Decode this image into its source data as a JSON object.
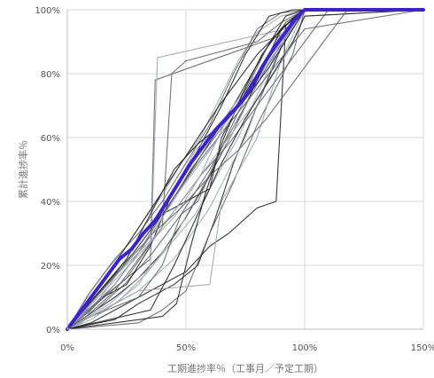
{
  "chart_data": {
    "type": "line",
    "xlabel": "工期進捗率％（工事月／予定工期）",
    "ylabel": "累計進捗率％",
    "xlim": [
      0,
      150
    ],
    "ylim": [
      0,
      100
    ],
    "x_ticks": [
      "0%",
      "50%",
      "100%",
      "150%"
    ],
    "y_ticks": [
      "0%",
      "20%",
      "40%",
      "60%",
      "80%",
      "100%"
    ],
    "x_tick_values": [
      0,
      50,
      100,
      150
    ],
    "y_tick_values": [
      0,
      20,
      40,
      60,
      80,
      100
    ],
    "grid": "both",
    "legend": "none",
    "colors": {
      "highlight": "#3a1fe0",
      "gray_dark": "#222222",
      "gray_mid": "#666666",
      "gray_light": "#9aa6b4"
    },
    "highlight_series": {
      "x": [
        0,
        3,
        7,
        12,
        17,
        22,
        27,
        32,
        37,
        42,
        47,
        52,
        57,
        62,
        67,
        72,
        77,
        82,
        87,
        92,
        96,
        100,
        150
      ],
      "y": [
        0,
        3,
        7,
        12,
        17,
        22,
        25,
        30,
        34,
        40,
        46,
        52,
        57,
        62,
        66,
        70,
        75,
        82,
        88,
        93,
        97,
        100,
        100
      ]
    },
    "series": [
      {
        "x": [
          0,
          10,
          20,
          30,
          40,
          50,
          60,
          70,
          80,
          90,
          100,
          150
        ],
        "y": [
          0,
          5,
          10,
          16,
          24,
          35,
          48,
          62,
          78,
          92,
          100,
          100
        ]
      },
      {
        "x": [
          0,
          15,
          25,
          35,
          37,
          90,
          100,
          150
        ],
        "y": [
          0,
          10,
          16,
          22,
          78,
          92,
          100,
          100
        ]
      },
      {
        "x": [
          0,
          20,
          30,
          35,
          38,
          92,
          100,
          150
        ],
        "y": [
          0,
          8,
          14,
          20,
          85,
          94,
          100,
          100
        ]
      },
      {
        "x": [
          0,
          10,
          20,
          30,
          40,
          50,
          60,
          68,
          80,
          88,
          92,
          100,
          150
        ],
        "y": [
          0,
          2,
          6,
          10,
          14,
          18,
          26,
          30,
          38,
          40,
          95,
          100,
          100
        ]
      },
      {
        "x": [
          0,
          12,
          24,
          36,
          48,
          60,
          72,
          84,
          96,
          100,
          150
        ],
        "y": [
          0,
          6,
          14,
          24,
          36,
          50,
          66,
          82,
          96,
          100,
          100
        ]
      },
      {
        "x": [
          0,
          8,
          16,
          24,
          32,
          40,
          48,
          56,
          64,
          72,
          80,
          90,
          100,
          150
        ],
        "y": [
          0,
          10,
          18,
          25,
          34,
          42,
          52,
          60,
          72,
          84,
          93,
          98,
          100,
          100
        ]
      },
      {
        "x": [
          0,
          20,
          30,
          45,
          55,
          62,
          70,
          80,
          90,
          100,
          150
        ],
        "y": [
          0,
          3,
          8,
          14,
          20,
          34,
          52,
          70,
          88,
          100,
          100
        ]
      },
      {
        "x": [
          0,
          10,
          20,
          30,
          40,
          50,
          60,
          70,
          80,
          90,
          100,
          150
        ],
        "y": [
          0,
          12,
          22,
          30,
          40,
          52,
          64,
          80,
          94,
          99,
          100,
          100
        ]
      },
      {
        "x": [
          0,
          15,
          30,
          45,
          60,
          75,
          85,
          95,
          100,
          150
        ],
        "y": [
          0,
          6,
          12,
          22,
          38,
          60,
          80,
          97,
          100,
          100
        ]
      },
      {
        "x": [
          0,
          5,
          15,
          25,
          35,
          45,
          55,
          65,
          75,
          85,
          95,
          100,
          150
        ],
        "y": [
          0,
          4,
          10,
          14,
          26,
          44,
          56,
          70,
          86,
          98,
          100,
          100,
          100
        ]
      },
      {
        "x": [
          0,
          25,
          40,
          44,
          50,
          60,
          70,
          80,
          90,
          100,
          150
        ],
        "y": [
          0,
          16,
          32,
          80,
          84,
          86,
          88,
          90,
          96,
          100,
          100
        ]
      },
      {
        "x": [
          0,
          10,
          22,
          34,
          46,
          58,
          70,
          82,
          94,
          100,
          150
        ],
        "y": [
          0,
          3,
          9,
          18,
          30,
          46,
          62,
          80,
          95,
          100,
          100
        ]
      },
      {
        "x": [
          0,
          14,
          28,
          42,
          56,
          70,
          84,
          92,
          100,
          150
        ],
        "y": [
          0,
          12,
          24,
          38,
          54,
          70,
          88,
          98,
          100,
          100
        ]
      },
      {
        "x": [
          0,
          30,
          40,
          50,
          60,
          70,
          80,
          95,
          100,
          150
        ],
        "y": [
          0,
          2,
          6,
          12,
          30,
          46,
          64,
          86,
          100,
          100
        ]
      },
      {
        "x": [
          0,
          6,
          18,
          30,
          42,
          54,
          66,
          78,
          90,
          100,
          150
        ],
        "y": [
          0,
          2,
          14,
          28,
          40,
          56,
          66,
          78,
          90,
          100,
          100
        ]
      },
      {
        "x": [
          0,
          20,
          40,
          50,
          60,
          65,
          75,
          85,
          90,
          100,
          150
        ],
        "y": [
          0,
          20,
          36,
          40,
          44,
          60,
          74,
          86,
          94,
          100,
          100
        ]
      },
      {
        "x": [
          0,
          12,
          20,
          28,
          36,
          44,
          52,
          60,
          68,
          76,
          84,
          92,
          100,
          150
        ],
        "y": [
          0,
          8,
          14,
          22,
          30,
          40,
          50,
          58,
          66,
          76,
          88,
          96,
          100,
          100
        ]
      },
      {
        "x": [
          0,
          18,
          36,
          54,
          72,
          90,
          100,
          150
        ],
        "y": [
          0,
          8,
          20,
          36,
          60,
          90,
          100,
          100
        ]
      },
      {
        "x": [
          0,
          25,
          35,
          45,
          55,
          65,
          75,
          85,
          100,
          150
        ],
        "y": [
          0,
          22,
          36,
          50,
          58,
          64,
          72,
          82,
          100,
          100
        ]
      },
      {
        "x": [
          0,
          10,
          30,
          40,
          48,
          55,
          62,
          72,
          82,
          92,
          100,
          150
        ],
        "y": [
          0,
          4,
          10,
          20,
          36,
          40,
          52,
          68,
          82,
          96,
          100,
          100
        ]
      },
      {
        "x": [
          0,
          30,
          60,
          65,
          80,
          90,
          100,
          150
        ],
        "y": [
          0,
          12,
          14,
          40,
          60,
          84,
          100,
          100
        ]
      },
      {
        "x": [
          0,
          16,
          32,
          48,
          64,
          80,
          96,
          100,
          150
        ],
        "y": [
          0,
          16,
          34,
          52,
          70,
          86,
          98,
          100,
          100
        ]
      },
      {
        "x": [
          0,
          8,
          20,
          32,
          44,
          56,
          68,
          80,
          92,
          100,
          110,
          150
        ],
        "y": [
          0,
          4,
          12,
          24,
          36,
          48,
          58,
          70,
          82,
          90,
          100,
          100
        ]
      },
      {
        "x": [
          0,
          22,
          38,
          52,
          66,
          80,
          94,
          100,
          150
        ],
        "y": [
          0,
          18,
          30,
          44,
          58,
          72,
          88,
          98,
          100
        ]
      },
      {
        "x": [
          0,
          35,
          45,
          55,
          65,
          75,
          85,
          95,
          100,
          150
        ],
        "y": [
          0,
          6,
          20,
          36,
          52,
          66,
          78,
          90,
          98,
          100
        ]
      },
      {
        "x": [
          0,
          10,
          20,
          30,
          40,
          55,
          70,
          85,
          100,
          150
        ],
        "y": [
          0,
          6,
          14,
          24,
          36,
          52,
          66,
          80,
          94,
          100
        ]
      },
      {
        "x": [
          0,
          26,
          36,
          46,
          56,
          66,
          76,
          86,
          96,
          100,
          150
        ],
        "y": [
          0,
          20,
          28,
          36,
          48,
          64,
          74,
          86,
          96,
          100,
          100
        ]
      },
      {
        "x": [
          0,
          40,
          46,
          52,
          58,
          66,
          74,
          82,
          90,
          100,
          150
        ],
        "y": [
          0,
          4,
          8,
          26,
          42,
          60,
          74,
          86,
          94,
          100,
          100
        ]
      },
      {
        "x": [
          0,
          12,
          24,
          36,
          48,
          60,
          72,
          84,
          96,
          108,
          118,
          150
        ],
        "y": [
          0,
          10,
          20,
          30,
          38,
          48,
          56,
          66,
          78,
          90,
          100,
          100
        ]
      },
      {
        "x": [
          0,
          20,
          34,
          48,
          62,
          76,
          90,
          100,
          150
        ],
        "y": [
          0,
          14,
          28,
          44,
          58,
          74,
          92,
          100,
          100
        ]
      }
    ]
  }
}
